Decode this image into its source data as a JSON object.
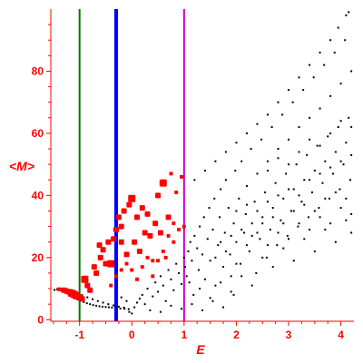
{
  "chart_data": {
    "type": "scatter",
    "title": "",
    "xlabel": "E",
    "ylabel": "<M>",
    "xlim": [
      -1.55,
      4.25
    ],
    "ylim": [
      -0.5,
      100
    ],
    "x_ticks": [
      -1,
      0,
      1,
      2,
      3,
      4
    ],
    "x_tick_labels": [
      "-1",
      "0",
      "1",
      "2",
      "3",
      "4"
    ],
    "y_ticks": [
      0,
      20,
      40,
      60,
      80
    ],
    "y_tick_labels": [
      "0",
      "20",
      "40",
      "60",
      "80"
    ],
    "grid": false,
    "legend": "none",
    "colors": {
      "axis": "#ff0000",
      "black_points": "#000000",
      "red_points": "#ff0000",
      "line_green": "#007700",
      "line_blue": "#0000ff",
      "line_magenta": "#cc00cc"
    },
    "vertical_lines": [
      {
        "x": -1.0,
        "color": "#007700",
        "width": "thin"
      },
      {
        "x": -0.3,
        "color": "#0000ff",
        "width": "thick"
      },
      {
        "x": 1.0,
        "color": "#cc00cc",
        "width": "thin"
      }
    ],
    "black_points": [
      [
        -1.48,
        9.6
      ],
      [
        -1.43,
        9.8
      ],
      [
        -1.38,
        10.1
      ],
      [
        -1.33,
        9.4
      ],
      [
        -1.28,
        9.0
      ],
      [
        -1.22,
        8.4
      ],
      [
        -1.16,
        7.6
      ],
      [
        -1.1,
        7.0
      ],
      [
        -1.04,
        6.5
      ],
      [
        -0.98,
        6.1
      ],
      [
        -0.92,
        5.7
      ],
      [
        -0.86,
        5.3
      ],
      [
        -0.8,
        5.0
      ],
      [
        -0.74,
        4.7
      ],
      [
        -0.68,
        4.5
      ],
      [
        -0.62,
        4.3
      ],
      [
        -0.56,
        4.2
      ],
      [
        -0.5,
        4.1
      ],
      [
        -0.44,
        4.0
      ],
      [
        -0.38,
        3.9
      ],
      [
        -0.3,
        3.8
      ],
      [
        -0.22,
        3.6
      ],
      [
        -0.14,
        3.5
      ],
      [
        -0.06,
        3.4
      ],
      [
        -1.15,
        9.3
      ],
      [
        -1.05,
        8.6
      ],
      [
        -0.95,
        7.9
      ],
      [
        -0.85,
        7.2
      ],
      [
        -0.75,
        6.6
      ],
      [
        -0.65,
        6.0
      ],
      [
        -0.55,
        5.5
      ],
      [
        -0.45,
        5.0
      ],
      [
        -0.35,
        4.6
      ],
      [
        -0.25,
        4.2
      ],
      [
        -0.15,
        3.9
      ],
      [
        -0.05,
        2.5
      ],
      [
        0.0,
        2.0
      ],
      [
        0.05,
        4.0
      ],
      [
        0.1,
        5.5
      ],
      [
        0.15,
        6.8
      ],
      [
        -0.1,
        6.0
      ],
      [
        -0.2,
        7.2
      ],
      [
        0.2,
        8.0
      ],
      [
        0.25,
        5.0
      ],
      [
        0.3,
        10.0
      ],
      [
        0.4,
        7.5
      ],
      [
        0.45,
        12.0
      ],
      [
        0.5,
        9.0
      ],
      [
        0.55,
        14.0
      ],
      [
        0.6,
        11.0
      ],
      [
        0.65,
        6.0
      ],
      [
        0.7,
        16.0
      ],
      [
        0.75,
        13.0
      ],
      [
        0.8,
        9.5
      ],
      [
        0.85,
        18.0
      ],
      [
        0.9,
        15.0
      ],
      [
        0.95,
        11.5
      ],
      [
        1.0,
        20.0
      ],
      [
        1.02,
        17.0
      ],
      [
        1.05,
        14.0
      ],
      [
        1.08,
        22.0
      ],
      [
        1.1,
        12.0
      ],
      [
        1.12,
        25.0
      ],
      [
        1.15,
        19.0
      ],
      [
        1.18,
        8.0
      ],
      [
        1.2,
        27.0
      ],
      [
        1.25,
        23.0
      ],
      [
        1.28,
        16.0
      ],
      [
        1.3,
        30.0
      ],
      [
        1.35,
        21.0
      ],
      [
        1.38,
        33.0
      ],
      [
        1.4,
        13.0
      ],
      [
        1.45,
        26.0
      ],
      [
        1.48,
        36.0
      ],
      [
        1.5,
        19.0
      ],
      [
        1.55,
        29.0
      ],
      [
        1.58,
        39.0
      ],
      [
        1.6,
        11.0
      ],
      [
        1.65,
        24.0
      ],
      [
        1.68,
        33.0
      ],
      [
        1.7,
        42.0
      ],
      [
        1.75,
        17.0
      ],
      [
        1.78,
        28.0
      ],
      [
        1.8,
        45.0
      ],
      [
        1.85,
        36.0
      ],
      [
        1.88,
        21.0
      ],
      [
        1.9,
        14.0
      ],
      [
        1.95,
        31.0
      ],
      [
        1.98,
        48.0
      ],
      [
        2.0,
        25.0
      ],
      [
        2.05,
        39.0
      ],
      [
        2.08,
        18.0
      ],
      [
        2.1,
        51.0
      ],
      [
        2.15,
        28.0
      ],
      [
        2.18,
        34.0
      ],
      [
        2.2,
        43.0
      ],
      [
        2.25,
        22.0
      ],
      [
        2.28,
        55.0
      ],
      [
        2.3,
        31.0
      ],
      [
        2.35,
        38.0
      ],
      [
        2.38,
        15.0
      ],
      [
        2.4,
        47.0
      ],
      [
        2.45,
        26.0
      ],
      [
        2.48,
        58.0
      ],
      [
        2.5,
        33.0
      ],
      [
        2.55,
        41.0
      ],
      [
        2.58,
        20.0
      ],
      [
        2.6,
        51.0
      ],
      [
        2.65,
        29.0
      ],
      [
        2.68,
        62.0
      ],
      [
        2.7,
        36.0
      ],
      [
        2.75,
        44.0
      ],
      [
        2.78,
        24.0
      ],
      [
        2.8,
        55.0
      ],
      [
        2.85,
        32.0
      ],
      [
        2.88,
        66.0
      ],
      [
        2.9,
        39.0
      ],
      [
        2.95,
        47.0
      ],
      [
        2.98,
        27.0
      ],
      [
        3.0,
        58.0
      ],
      [
        3.05,
        35.0
      ],
      [
        3.08,
        70.0
      ],
      [
        3.1,
        42.0
      ],
      [
        3.15,
        50.0
      ],
      [
        3.18,
        30.0
      ],
      [
        3.2,
        62.0
      ],
      [
        3.25,
        38.0
      ],
      [
        3.28,
        74.0
      ],
      [
        3.3,
        45.0
      ],
      [
        3.35,
        53.0
      ],
      [
        3.38,
        33.0
      ],
      [
        3.4,
        65.0
      ],
      [
        3.45,
        41.0
      ],
      [
        3.48,
        78.0
      ],
      [
        3.5,
        48.0
      ],
      [
        3.55,
        56.0
      ],
      [
        3.58,
        36.0
      ],
      [
        3.6,
        68.0
      ],
      [
        3.65,
        44.0
      ],
      [
        3.68,
        82.0
      ],
      [
        3.7,
        51.0
      ],
      [
        3.75,
        59.0
      ],
      [
        3.78,
        39.0
      ],
      [
        3.8,
        72.0
      ],
      [
        3.85,
        47.0
      ],
      [
        3.88,
        86.0
      ],
      [
        3.9,
        54.0
      ],
      [
        3.95,
        62.0
      ],
      [
        3.98,
        42.0
      ],
      [
        4.0,
        76.0
      ],
      [
        4.05,
        50.0
      ],
      [
        4.08,
        90.0
      ],
      [
        4.1,
        57.0
      ],
      [
        4.15,
        65.0
      ],
      [
        4.18,
        45.0
      ],
      [
        4.2,
        80.0
      ],
      [
        4.1,
        98.0
      ],
      [
        4.15,
        99.0
      ],
      [
        3.95,
        94.0
      ],
      [
        3.8,
        90.0
      ],
      [
        3.6,
        86.0
      ],
      [
        3.4,
        82.0
      ],
      [
        3.2,
        78.0
      ],
      [
        3.0,
        74.0
      ],
      [
        2.8,
        70.0
      ],
      [
        2.6,
        66.0
      ],
      [
        2.4,
        63.0
      ],
      [
        2.2,
        60.0
      ],
      [
        2.0,
        57.0
      ],
      [
        1.8,
        54.0
      ],
      [
        1.6,
        51.0
      ],
      [
        1.4,
        48.0
      ],
      [
        1.2,
        45.0
      ],
      [
        2.5,
        20.0
      ],
      [
        2.7,
        17.0
      ],
      [
        2.9,
        23.0
      ],
      [
        3.1,
        19.0
      ],
      [
        3.3,
        26.0
      ],
      [
        3.5,
        22.0
      ],
      [
        3.7,
        29.0
      ],
      [
        3.9,
        25.0
      ],
      [
        4.1,
        32.0
      ],
      [
        4.2,
        28.0
      ],
      [
        1.3,
        10.0
      ],
      [
        1.5,
        7.0
      ],
      [
        1.7,
        12.0
      ],
      [
        1.9,
        9.0
      ],
      [
        2.1,
        14.0
      ],
      [
        2.3,
        11.0
      ],
      [
        1.15,
        5.0
      ],
      [
        1.35,
        3.0
      ],
      [
        1.55,
        6.0
      ],
      [
        1.75,
        4.0
      ],
      [
        1.95,
        8.0
      ],
      [
        0.35,
        3.0
      ],
      [
        0.55,
        2.5
      ],
      [
        0.75,
        4.5
      ],
      [
        0.95,
        3.5
      ],
      [
        2.0,
        35.0
      ],
      [
        2.2,
        37.0
      ],
      [
        2.4,
        35.0
      ],
      [
        2.6,
        38.0
      ],
      [
        2.8,
        40.0
      ],
      [
        3.0,
        42.0
      ],
      [
        3.2,
        40.0
      ],
      [
        3.4,
        45.0
      ],
      [
        3.6,
        47.0
      ],
      [
        3.8,
        49.0
      ],
      [
        4.0,
        51.0
      ],
      [
        4.2,
        53.0
      ],
      [
        1.9,
        27.0
      ],
      [
        2.1,
        29.0
      ],
      [
        2.3,
        27.0
      ],
      [
        2.5,
        31.0
      ],
      [
        2.7,
        33.0
      ],
      [
        2.9,
        31.0
      ],
      [
        3.1,
        35.0
      ],
      [
        3.3,
        37.0
      ],
      [
        3.5,
        35.0
      ],
      [
        3.7,
        39.0
      ],
      [
        3.9,
        41.0
      ],
      [
        4.1,
        39.0
      ],
      [
        2.6,
        48.0
      ],
      [
        2.8,
        52.0
      ],
      [
        3.0,
        50.0
      ],
      [
        3.2,
        54.0
      ],
      [
        3.4,
        58.0
      ],
      [
        3.6,
        56.0
      ],
      [
        3.8,
        60.0
      ],
      [
        4.0,
        64.0
      ],
      [
        4.2,
        62.0
      ],
      [
        1.6,
        20.0
      ],
      [
        1.7,
        25.0
      ],
      [
        1.8,
        22.0
      ],
      [
        2.0,
        18.0
      ],
      [
        2.2,
        24.0
      ],
      [
        2.4,
        28.0
      ],
      [
        2.6,
        24.0
      ],
      [
        2.8,
        28.0
      ],
      [
        3.0,
        26.0
      ],
      [
        3.2,
        31.0
      ],
      [
        3.4,
        29.0
      ],
      [
        3.6,
        33.0
      ],
      [
        3.8,
        31.0
      ],
      [
        4.0,
        36.0
      ],
      [
        4.2,
        34.0
      ]
    ],
    "red_points": [
      [
        -1.4,
        9.8,
        2
      ],
      [
        -1.35,
        9.7,
        2
      ],
      [
        -1.3,
        9.5,
        3
      ],
      [
        -1.25,
        9.2,
        3
      ],
      [
        -1.2,
        8.9,
        3
      ],
      [
        -1.15,
        8.5,
        4
      ],
      [
        -1.1,
        8.1,
        4
      ],
      [
        -1.06,
        7.7,
        4
      ],
      [
        -1.02,
        7.4,
        3
      ],
      [
        -0.98,
        7.1,
        3
      ],
      [
        -0.95,
        6.7,
        3
      ],
      [
        -1.18,
        9.0,
        3
      ],
      [
        -1.12,
        8.6,
        3
      ],
      [
        -1.08,
        8.3,
        3
      ],
      [
        -1.27,
        9.6,
        2
      ],
      [
        -0.9,
        13.0,
        4
      ],
      [
        -0.85,
        11.0,
        3
      ],
      [
        -0.8,
        9.5,
        3
      ],
      [
        -0.72,
        17.0,
        3
      ],
      [
        -0.68,
        15.0,
        3
      ],
      [
        -0.6,
        20.0,
        3
      ],
      [
        -0.55,
        22.5,
        3
      ],
      [
        -0.5,
        18.0,
        3
      ],
      [
        -0.45,
        25.0,
        3
      ],
      [
        -0.4,
        18.0,
        4
      ],
      [
        -0.35,
        26.0,
        3
      ],
      [
        -0.3,
        29.0,
        3
      ],
      [
        -0.25,
        33.0,
        3
      ],
      [
        -0.2,
        25.0,
        3
      ],
      [
        -0.15,
        35.0,
        3
      ],
      [
        -0.1,
        21.0,
        3
      ],
      [
        -0.05,
        37.0,
        3
      ],
      [
        0.0,
        39.0,
        4
      ],
      [
        0.05,
        25.0,
        3
      ],
      [
        0.1,
        33.0,
        3
      ],
      [
        0.15,
        22.0,
        3
      ],
      [
        0.2,
        36.0,
        3
      ],
      [
        0.25,
        28.0,
        3
      ],
      [
        0.3,
        20.0,
        2
      ],
      [
        0.35,
        27.0,
        3
      ],
      [
        0.4,
        19.0,
        2
      ],
      [
        0.45,
        31.0,
        3
      ],
      [
        0.5,
        40.0,
        3
      ],
      [
        0.55,
        28.0,
        3
      ],
      [
        0.6,
        44.0,
        4
      ],
      [
        0.65,
        20.0,
        2
      ],
      [
        0.7,
        33.0,
        3
      ],
      [
        0.75,
        47.0,
        2
      ],
      [
        0.8,
        25.0,
        2
      ],
      [
        0.85,
        41.0,
        2
      ],
      [
        0.9,
        29.0,
        2
      ],
      [
        0.95,
        46.0,
        2
      ],
      [
        1.0,
        30.0,
        2
      ],
      [
        -0.62,
        24.0,
        3
      ],
      [
        -0.2,
        30.0,
        3
      ],
      [
        0.3,
        34.0,
        3
      ],
      [
        -0.4,
        11.0,
        2
      ],
      [
        -0.3,
        14.0,
        2
      ],
      [
        -0.2,
        16.0,
        2
      ],
      [
        -0.1,
        18.0,
        2
      ],
      [
        0.0,
        16.0,
        2
      ],
      [
        0.1,
        13.0,
        2
      ],
      [
        0.2,
        17.0,
        2
      ],
      [
        0.4,
        14.0,
        2
      ],
      [
        0.5,
        19.0,
        2
      ],
      [
        0.6,
        22.0,
        2
      ],
      [
        0.7,
        27.0,
        2
      ],
      [
        0.8,
        31.0,
        2
      ]
    ]
  }
}
